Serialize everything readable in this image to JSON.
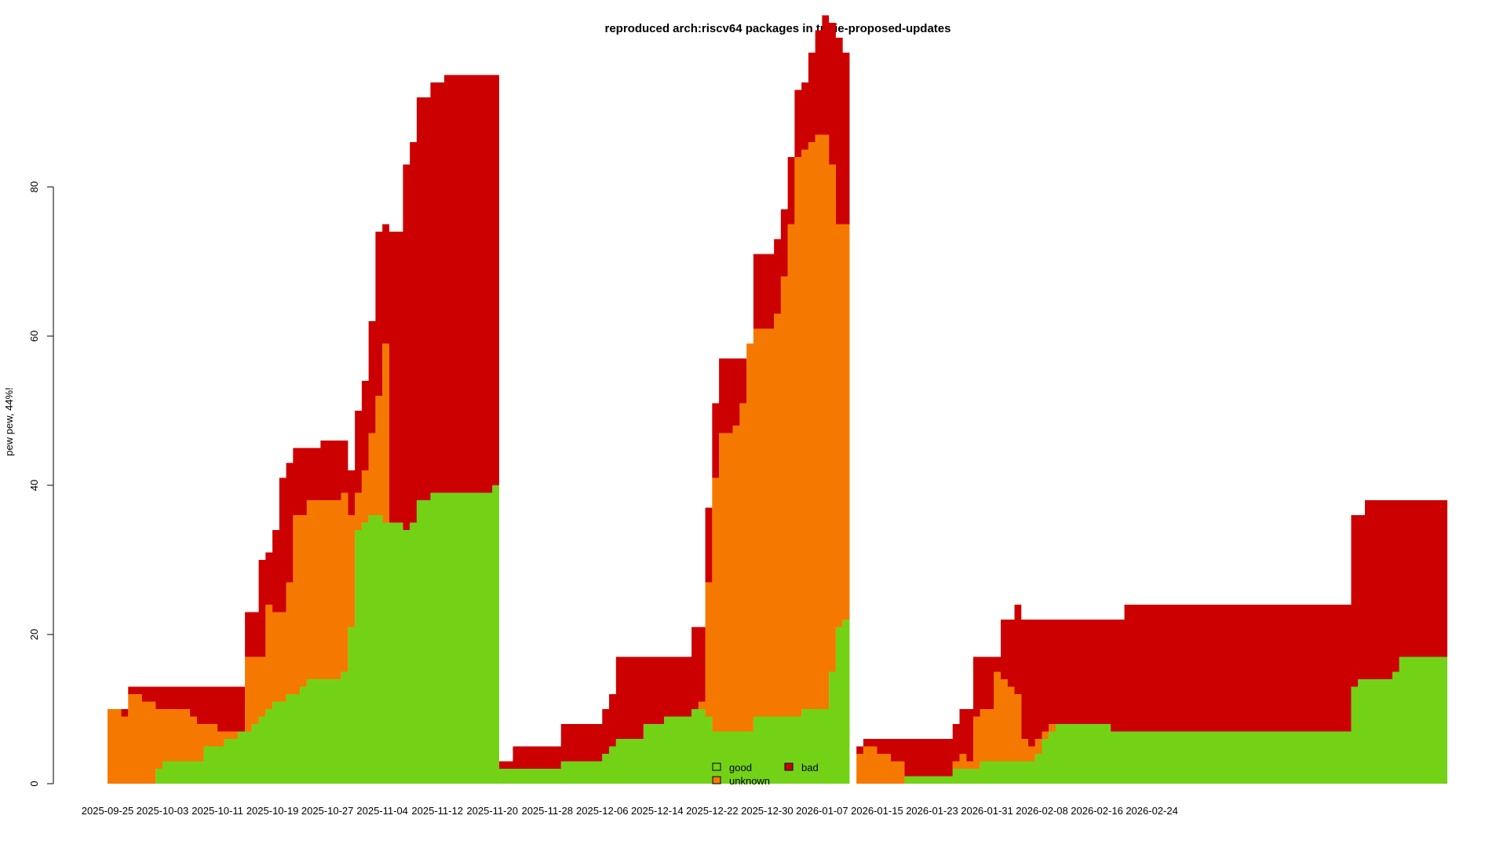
{
  "chart_data": {
    "type": "area",
    "title": "reproduced arch:riscv64 packages in trixie-proposed-updates",
    "xlabel": "",
    "ylabel": "pew pew, 44%!",
    "ylim": [
      0,
      98
    ],
    "grid": false,
    "legend_position": "bottom-center",
    "stacking": "stacked",
    "colors": {
      "good": "#73d216",
      "unknown": "#f57900",
      "bad": "#cc0000"
    },
    "yticks": [
      0,
      20,
      40,
      60,
      80
    ],
    "xtick_labels": [
      "2025-09-25",
      "2025-10-03",
      "2025-10-11",
      "2025-10-19",
      "2025-10-27",
      "2025-11-04",
      "2025-11-12",
      "2025-11-20",
      "2025-11-28",
      "2025-12-06",
      "2025-12-14",
      "2025-12-22",
      "2025-12-30",
      "2026-01-07",
      "2026-01-15",
      "2026-01-23",
      "2026-01-31",
      "2026-02-08",
      "2026-02-16",
      "2026-02-24"
    ],
    "legend": [
      {
        "key": "good",
        "label": "good"
      },
      {
        "key": "unknown",
        "label": "unknown"
      },
      {
        "key": "bad",
        "label": "bad"
      }
    ],
    "segments": [
      {
        "start": "2025-09-25",
        "good": [
          0,
          0,
          0,
          0,
          0,
          0,
          0,
          2,
          3,
          3,
          3,
          3,
          3,
          3,
          5,
          5,
          5,
          6,
          6,
          7,
          7,
          8,
          9,
          10,
          11,
          11,
          12,
          12,
          13,
          14,
          14,
          14,
          14,
          14,
          15,
          21,
          34,
          35,
          36,
          36,
          35,
          35,
          35,
          34,
          35,
          38,
          38,
          39,
          39,
          39,
          39,
          39,
          39,
          39,
          39,
          39,
          40
        ],
        "unknown": [
          10,
          10,
          9,
          12,
          12,
          11,
          11,
          8,
          7,
          7,
          7,
          7,
          6,
          5,
          3,
          3,
          2,
          1,
          1,
          0,
          10,
          9,
          8,
          14,
          12,
          12,
          15,
          24,
          23,
          24,
          24,
          24,
          24,
          24,
          24,
          15,
          5,
          7,
          11,
          16,
          24,
          0,
          0,
          0,
          0,
          0,
          0,
          0,
          0,
          0,
          0,
          0,
          0,
          0,
          0,
          0,
          0
        ],
        "bad": [
          0,
          0,
          1,
          1,
          1,
          2,
          2,
          3,
          3,
          3,
          3,
          3,
          4,
          5,
          5,
          5,
          6,
          6,
          6,
          6,
          6,
          6,
          13,
          7,
          11,
          18,
          16,
          9,
          9,
          7,
          7,
          8,
          8,
          8,
          7,
          6,
          11,
          12,
          15,
          22,
          16,
          39,
          39,
          49,
          51,
          54,
          54,
          55,
          55,
          56,
          56,
          56,
          56,
          56,
          56,
          56,
          55
        ]
      },
      {
        "start": "2025-11-21",
        "good": [
          2,
          2,
          2,
          2,
          2,
          2,
          2,
          2,
          2,
          3,
          3,
          3,
          3,
          3,
          3,
          4,
          5,
          6,
          6,
          6,
          6,
          8,
          8,
          8,
          9,
          9,
          9,
          9,
          10,
          10,
          9,
          7,
          7,
          7,
          7,
          7,
          7,
          9,
          9,
          9,
          9,
          9,
          9,
          9,
          10,
          10,
          10,
          10,
          15,
          21,
          22
        ],
        "unknown": [
          0,
          0,
          0,
          0,
          0,
          0,
          0,
          0,
          0,
          0,
          0,
          0,
          0,
          0,
          0,
          0,
          0,
          0,
          0,
          0,
          0,
          0,
          0,
          0,
          0,
          0,
          0,
          0,
          0,
          1,
          18,
          34,
          40,
          40,
          41,
          44,
          52,
          52,
          52,
          52,
          54,
          59,
          66,
          75,
          75,
          76,
          77,
          77,
          68,
          54,
          53
        ],
        "bad": [
          1,
          1,
          3,
          3,
          3,
          3,
          3,
          3,
          3,
          5,
          5,
          5,
          5,
          5,
          5,
          6,
          7,
          11,
          11,
          11,
          11,
          9,
          9,
          9,
          8,
          8,
          8,
          8,
          11,
          10,
          10,
          10,
          10,
          10,
          9,
          6,
          0,
          10,
          10,
          10,
          10,
          9,
          9,
          9,
          9,
          12,
          14,
          16,
          19,
          25,
          23
        ]
      },
      {
        "start": "2026-01-11",
        "good": [
          0,
          0,
          0,
          0,
          0,
          0,
          0,
          0,
          1,
          1,
          1,
          1,
          1,
          1,
          1,
          2,
          2,
          2,
          2,
          3,
          3,
          3,
          3,
          3,
          3,
          3,
          3,
          4,
          6,
          7,
          8,
          8,
          8,
          8,
          8,
          8,
          8,
          8,
          7,
          7,
          7,
          7,
          7,
          7,
          7,
          7,
          7,
          7,
          7,
          7,
          7,
          7,
          7,
          7,
          7,
          7,
          7,
          7,
          7,
          7,
          7,
          7,
          7,
          7,
          7,
          7,
          7,
          7,
          7,
          7,
          7,
          7,
          7,
          13,
          14,
          14,
          14,
          14,
          14,
          15,
          17,
          17,
          17,
          17,
          17,
          17,
          17
        ],
        "unknown": [
          0,
          4,
          5,
          5,
          4,
          4,
          3,
          3,
          0,
          0,
          0,
          0,
          0,
          0,
          0,
          1,
          2,
          1,
          7,
          7,
          7,
          12,
          11,
          10,
          9,
          3,
          2,
          2,
          1,
          1,
          0,
          0,
          0,
          0,
          0,
          0,
          0,
          0,
          0,
          0,
          0,
          0,
          0,
          0,
          0,
          0,
          0,
          0,
          0,
          0,
          0,
          0,
          0,
          0,
          0,
          0,
          0,
          0,
          0,
          0,
          0,
          0,
          0,
          0,
          0,
          0,
          0,
          0,
          0,
          0,
          0,
          0,
          0,
          0,
          0,
          0,
          0,
          0,
          0,
          0,
          0,
          0,
          0,
          0,
          0,
          0,
          0
        ],
        "bad": [
          0,
          1,
          1,
          1,
          2,
          2,
          3,
          3,
          5,
          5,
          5,
          5,
          5,
          5,
          5,
          5,
          6,
          7,
          8,
          7,
          7,
          2,
          8,
          9,
          12,
          16,
          17,
          16,
          15,
          14,
          14,
          14,
          14,
          14,
          14,
          14,
          14,
          14,
          15,
          15,
          17,
          17,
          17,
          17,
          17,
          17,
          17,
          17,
          17,
          17,
          17,
          17,
          17,
          17,
          17,
          17,
          17,
          17,
          17,
          17,
          17,
          17,
          17,
          17,
          17,
          17,
          17,
          17,
          17,
          17,
          17,
          17,
          17,
          23,
          22,
          24,
          24,
          24,
          24,
          23,
          21,
          21,
          21,
          21,
          21,
          21,
          21
        ]
      }
    ]
  }
}
